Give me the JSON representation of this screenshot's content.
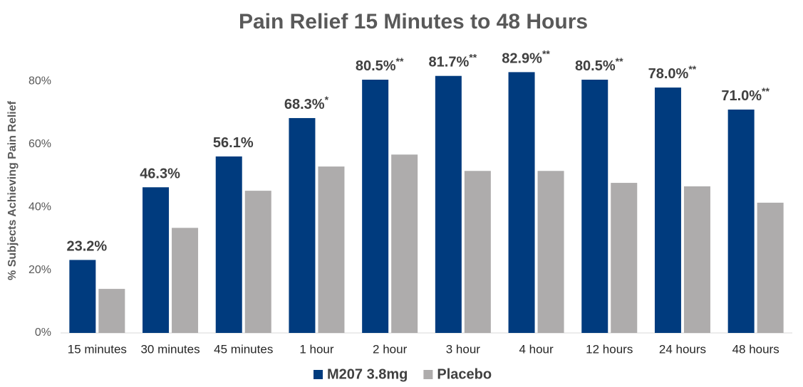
{
  "chart_data": {
    "type": "bar",
    "title": "Pain Relief 15 Minutes to 48 Hours",
    "y_label": "% Subjects Achieving Pain Relief",
    "categories": [
      "15 minutes",
      "30 minutes",
      "45 minutes",
      "1 hour",
      "2 hour",
      "3 hour",
      "4 hour",
      "12 hours",
      "24 hours",
      "48 hours"
    ],
    "series": [
      {
        "name": "M207 3.8mg",
        "color": "#003b7e",
        "values": [
          23.2,
          46.3,
          56.1,
          68.3,
          80.5,
          81.7,
          82.9,
          80.5,
          78.0,
          71.0
        ],
        "value_labels": [
          "23.2%",
          "46.3%",
          "56.1%",
          "68.3%",
          "80.5%",
          "81.7%",
          "82.9%",
          "80.5%",
          "78.0%",
          "71.0%"
        ],
        "significance": [
          null,
          null,
          null,
          "*",
          "**",
          "**",
          "**",
          "**",
          "**",
          "**"
        ]
      },
      {
        "name": "Placebo",
        "color": "#aeacac",
        "values": [
          14.0,
          33.4,
          45.2,
          52.9,
          56.7,
          51.5,
          51.5,
          47.7,
          46.6,
          41.4
        ]
      }
    ],
    "ylim": [
      0,
      90
    ],
    "yticks": [
      {
        "value": 0,
        "label": "0%"
      },
      {
        "value": 20,
        "label": "20%"
      },
      {
        "value": 40,
        "label": "40%"
      },
      {
        "value": 60,
        "label": "60%"
      },
      {
        "value": 80,
        "label": "80%"
      }
    ],
    "legend": "bottom"
  }
}
